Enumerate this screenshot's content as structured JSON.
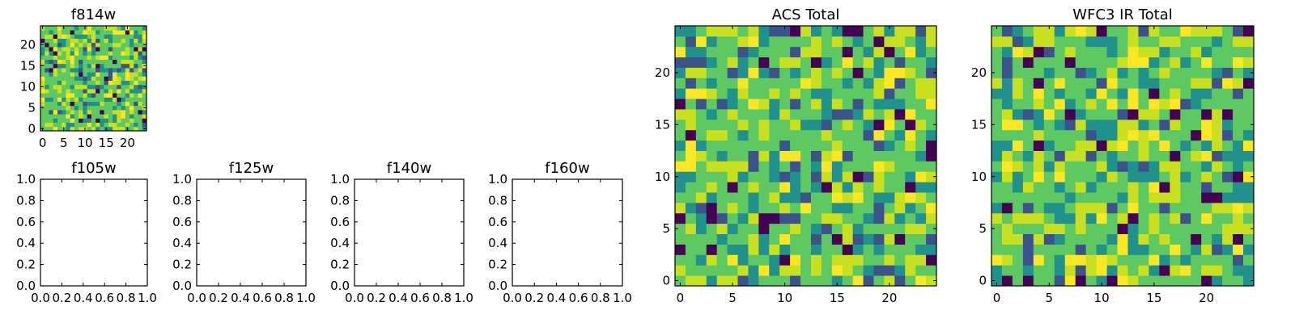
{
  "chart_data": [
    {
      "id": "f814w",
      "type": "heatmap",
      "title": "f814w",
      "xlim": [
        0,
        24
      ],
      "ylim": [
        0,
        24
      ],
      "grid_size": 25,
      "xticks": [
        "0",
        "5",
        "10",
        "15",
        "20"
      ],
      "yticks": [
        "0",
        "5",
        "10",
        "15",
        "20"
      ],
      "colormap": "viridis",
      "data": "random 25x25 image (values not labeled)"
    },
    {
      "id": "f105w",
      "type": "empty",
      "title": "f105w",
      "xlim": [
        0.0,
        1.0
      ],
      "ylim": [
        0.0,
        1.0
      ],
      "xticks": [
        "0.0",
        "0.2",
        "0.4",
        "0.6",
        "0.8",
        "1.0"
      ],
      "yticks": [
        "0.0",
        "0.2",
        "0.4",
        "0.6",
        "0.8",
        "1.0"
      ]
    },
    {
      "id": "f125w",
      "type": "empty",
      "title": "f125w",
      "xlim": [
        0.0,
        1.0
      ],
      "ylim": [
        0.0,
        1.0
      ],
      "xticks": [
        "0.0",
        "0.2",
        "0.4",
        "0.6",
        "0.8",
        "1.0"
      ],
      "yticks": [
        "0.0",
        "0.2",
        "0.4",
        "0.6",
        "0.8",
        "1.0"
      ]
    },
    {
      "id": "f140w",
      "type": "empty",
      "title": "f140w",
      "xlim": [
        0.0,
        1.0
      ],
      "ylim": [
        0.0,
        1.0
      ],
      "xticks": [
        "0.0",
        "0.2",
        "0.4",
        "0.6",
        "0.8",
        "1.0"
      ],
      "yticks": [
        "0.0",
        "0.2",
        "0.4",
        "0.6",
        "0.8",
        "1.0"
      ]
    },
    {
      "id": "f160w",
      "type": "empty",
      "title": "f160w",
      "xlim": [
        0.0,
        1.0
      ],
      "ylim": [
        0.0,
        1.0
      ],
      "xticks": [
        "0.0",
        "0.2",
        "0.4",
        "0.6",
        "0.8",
        "1.0"
      ],
      "yticks": [
        "0.0",
        "0.2",
        "0.4",
        "0.6",
        "0.8",
        "1.0"
      ]
    },
    {
      "id": "acs-total",
      "type": "heatmap",
      "title": "ACS Total",
      "xlim": [
        0,
        24
      ],
      "ylim": [
        0,
        24
      ],
      "grid_size": 25,
      "xticks": [
        "0",
        "5",
        "10",
        "15",
        "20"
      ],
      "yticks": [
        "0",
        "5",
        "10",
        "15",
        "20"
      ],
      "colormap": "viridis",
      "data": "random 25x25 image (values not labeled)"
    },
    {
      "id": "wfc3-ir-total",
      "type": "heatmap",
      "title": "WFC3 IR Total",
      "xlim": [
        0,
        24
      ],
      "ylim": [
        0,
        24
      ],
      "grid_size": 25,
      "xticks": [
        "0",
        "5",
        "10",
        "15",
        "20"
      ],
      "yticks": [
        "0",
        "5",
        "10",
        "15",
        "20"
      ],
      "colormap": "viridis",
      "data": "random 25x25 image (values not labeled)"
    }
  ],
  "colors": {
    "viridis": [
      "#440154",
      "#3b528b",
      "#21918c",
      "#5ec962",
      "#c8e020",
      "#fde725"
    ]
  }
}
